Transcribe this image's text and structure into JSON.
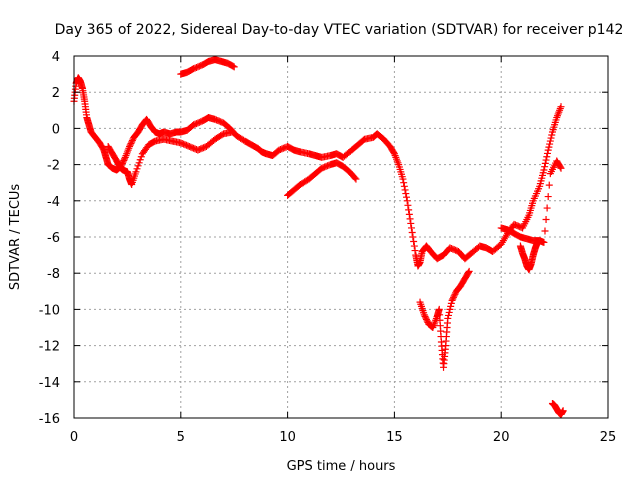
{
  "chart_data": {
    "type": "scatter",
    "title": "Day 365 of 2022, Sidereal Day-to-day VTEC variation (SDTVAR) for receiver p142",
    "xlabel": "GPS time / hours",
    "ylabel": "SDTVAR / TECUs",
    "xlim": [
      0,
      25
    ],
    "ylim": [
      -16,
      4
    ],
    "xticks": [
      0,
      5,
      10,
      15,
      20,
      25
    ],
    "yticks": [
      -16,
      -14,
      -12,
      -10,
      -8,
      -6,
      -4,
      -2,
      0,
      2,
      4
    ],
    "grid": true,
    "marker": "plus",
    "color": "#ff0000",
    "series": [
      {
        "x": [
          0.0,
          0.1,
          0.2,
          0.3,
          0.4,
          0.5,
          0.6,
          0.7,
          0.8,
          1.0,
          1.2,
          1.4,
          1.5,
          1.6,
          1.8,
          2.0,
          2.2,
          2.4,
          2.6,
          2.8,
          3.0,
          3.2,
          3.4,
          3.6,
          3.8,
          4.0,
          4.2,
          4.5,
          4.8,
          5.0,
          5.3,
          5.6,
          6.0,
          6.3,
          6.6,
          7.0,
          7.3,
          7.6,
          8.0,
          8.3,
          8.6,
          8.8,
          9.0,
          9.3,
          9.6,
          10.0,
          10.3,
          10.6,
          11.0,
          11.3,
          11.6,
          12.0,
          12.3,
          12.6,
          13.0,
          13.3,
          13.6,
          14.0,
          14.2,
          14.5,
          14.8,
          15.0,
          15.2,
          15.4,
          15.6,
          15.8,
          16.0,
          16.1,
          16.2,
          16.3,
          16.5,
          16.7,
          17.0,
          17.3,
          17.6,
          18.0,
          18.3,
          18.6,
          19.0,
          19.3,
          19.6,
          20.0,
          20.3,
          20.6,
          21.0,
          21.3,
          21.5,
          21.8,
          22.0,
          22.2,
          22.4,
          22.6,
          22.8
        ],
        "y": [
          1.5,
          2.5,
          2.8,
          2.6,
          2.2,
          1.5,
          0.6,
          0.2,
          -0.2,
          -0.5,
          -0.8,
          -1.2,
          -1.6,
          -2.0,
          -2.2,
          -2.3,
          -2.1,
          -1.6,
          -1.0,
          -0.5,
          -0.2,
          0.2,
          0.5,
          0.1,
          -0.2,
          -0.3,
          -0.2,
          -0.3,
          -0.2,
          -0.2,
          -0.1,
          0.2,
          0.4,
          0.6,
          0.5,
          0.3,
          0.0,
          -0.4,
          -0.7,
          -0.9,
          -1.1,
          -1.3,
          -1.4,
          -1.5,
          -1.2,
          -1.0,
          -1.2,
          -1.3,
          -1.4,
          -1.5,
          -1.6,
          -1.5,
          -1.4,
          -1.6,
          -1.2,
          -0.9,
          -0.6,
          -0.5,
          -0.3,
          -0.6,
          -1.0,
          -1.4,
          -2.0,
          -2.8,
          -4.0,
          -5.5,
          -7.0,
          -7.6,
          -7.4,
          -6.8,
          -6.5,
          -6.8,
          -7.2,
          -7.0,
          -6.6,
          -6.8,
          -7.2,
          -6.9,
          -6.5,
          -6.6,
          -6.8,
          -6.4,
          -5.8,
          -5.3,
          -5.5,
          -4.8,
          -4.0,
          -3.2,
          -2.3,
          -1.2,
          -0.2,
          0.6,
          1.2
        ]
      },
      {
        "x": [
          1.6,
          1.8,
          2.0,
          2.1,
          2.2,
          2.3,
          2.5,
          2.6,
          2.7,
          2.9,
          3.2,
          3.5,
          3.8,
          4.2,
          4.6,
          5.0,
          5.4,
          5.8,
          6.2,
          6.6,
          7.0,
          7.4
        ],
        "y": [
          -1.0,
          -1.4,
          -1.8,
          -2.0,
          -2.2,
          -2.3,
          -2.4,
          -2.8,
          -3.1,
          -2.4,
          -1.4,
          -0.9,
          -0.7,
          -0.6,
          -0.7,
          -0.8,
          -1.0,
          -1.2,
          -1.0,
          -0.6,
          -0.3,
          -0.2
        ]
      },
      {
        "x": [
          5.0,
          5.3,
          5.6,
          6.0,
          6.3,
          6.6,
          6.9,
          7.2,
          7.5
        ],
        "y": [
          3.0,
          3.1,
          3.3,
          3.5,
          3.7,
          3.8,
          3.7,
          3.6,
          3.4
        ]
      },
      {
        "x": [
          10.0,
          10.3,
          10.6,
          11.0,
          11.3,
          11.6,
          12.0,
          12.3,
          12.6,
          12.9,
          13.2
        ],
        "y": [
          -3.7,
          -3.4,
          -3.1,
          -2.8,
          -2.5,
          -2.2,
          -2.0,
          -1.9,
          -2.1,
          -2.4,
          -2.8
        ]
      },
      {
        "x": [
          16.2,
          16.4,
          16.6,
          16.8,
          17.0,
          17.1,
          17.2,
          17.3,
          17.4,
          17.5,
          17.7,
          17.9,
          18.1,
          18.3,
          18.5
        ],
        "y": [
          -9.6,
          -10.3,
          -10.8,
          -11.0,
          -10.4,
          -10.0,
          -11.8,
          -13.2,
          -12.0,
          -10.5,
          -9.5,
          -9.0,
          -8.7,
          -8.3,
          -7.9
        ]
      },
      {
        "x": [
          20.0,
          20.3,
          20.6,
          20.9,
          21.2,
          21.5,
          21.8,
          22.0,
          22.3,
          22.6,
          22.8
        ],
        "y": [
          -5.5,
          -5.6,
          -5.8,
          -6.0,
          -6.1,
          -6.2,
          -6.2,
          -6.3,
          -2.5,
          -1.8,
          -2.2
        ]
      },
      {
        "x": [
          20.9,
          21.0,
          21.1,
          21.2,
          21.3,
          21.4,
          21.5,
          21.6,
          21.7
        ],
        "y": [
          -6.5,
          -6.9,
          -7.2,
          -7.6,
          -7.8,
          -7.5,
          -7.0,
          -6.6,
          -6.3
        ]
      },
      {
        "x": [
          22.4,
          22.5,
          22.6,
          22.7,
          22.8,
          22.9
        ],
        "y": [
          -15.2,
          -15.3,
          -15.5,
          -15.7,
          -15.8,
          -15.6
        ]
      }
    ]
  }
}
